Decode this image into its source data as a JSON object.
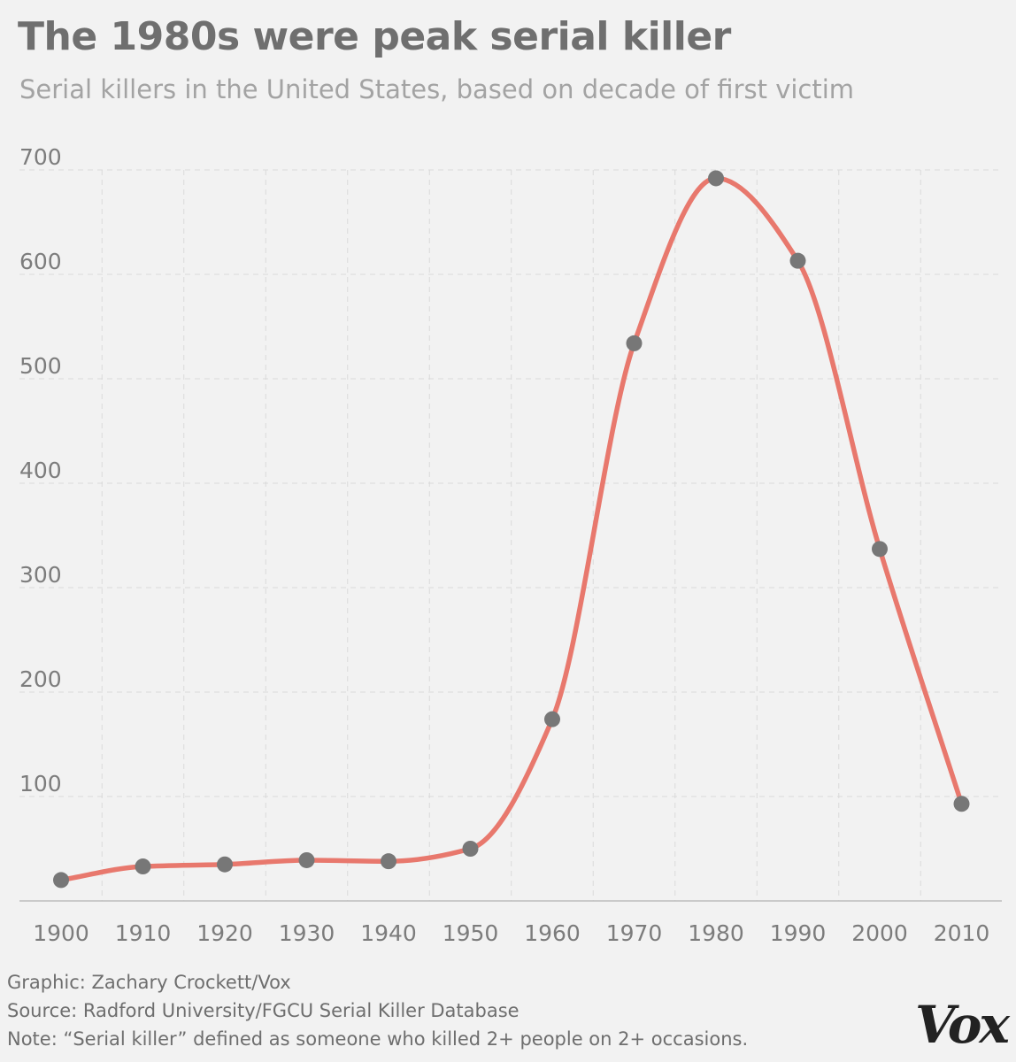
{
  "header": {
    "title": "The 1980s were peak serial killer",
    "subtitle": "Serial killers in the United States, based on decade of first victim"
  },
  "chart_data": {
    "type": "line",
    "title": "The 1980s were peak serial killer",
    "subtitle": "Serial killers in the United States, based on decade of first victim",
    "xlabel": "",
    "ylabel": "",
    "x": [
      "1900",
      "1910",
      "1920",
      "1930",
      "1940",
      "1950",
      "1960",
      "1970",
      "1980",
      "1990",
      "2000",
      "2010"
    ],
    "series": [
      {
        "values": [
          20,
          33,
          35,
          39,
          38,
          50,
          174,
          534,
          692,
          613,
          337,
          93
        ],
        "color": "#e8786d"
      }
    ],
    "ylim": [
      0,
      700
    ],
    "yticks": [
      100,
      200,
      300,
      400,
      500,
      600,
      700
    ],
    "marker_color": "#777777",
    "grid": true,
    "grid_style": "dashed",
    "legend": "none",
    "curve": "smooth"
  },
  "footer": {
    "graphic_credit": "Graphic: Zachary Crockett/Vox",
    "source": "Source: Radford University/FGCU Serial Killer Database",
    "note": "Note: “Serial killer” defined as someone who killed 2+ people on 2+ occasions."
  },
  "brand": {
    "logo_text": "Vox"
  }
}
